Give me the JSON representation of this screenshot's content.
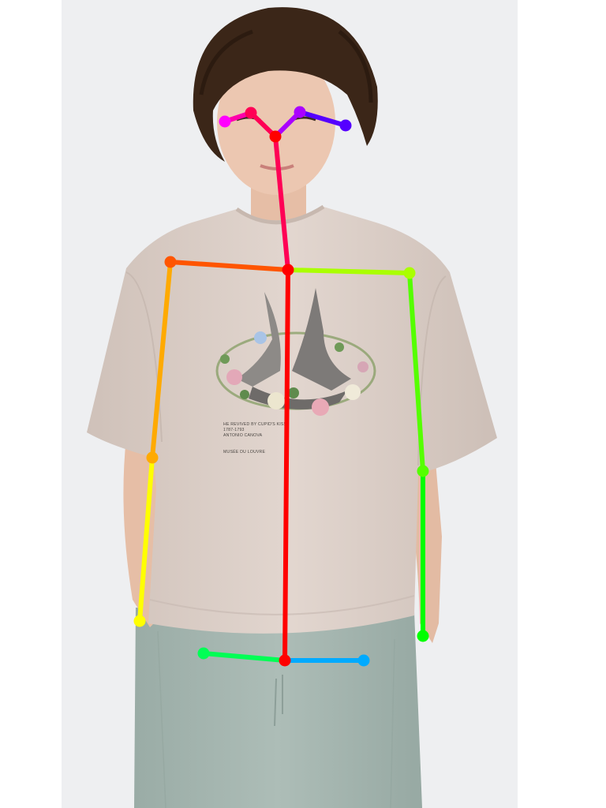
{
  "photo": {
    "background_color": "#eeeff1",
    "canvas_color": "#ffffff",
    "shirt_color": "#ddd0c9",
    "pants_color": "#a6b6b0",
    "hair_color": "#3b2618",
    "skin_color": "#e9c3ad"
  },
  "shirt_print": {
    "lines": [
      "HE REVIVED BY CUPID'S KISS",
      "1787-1793",
      "ANTONIO CANOVA",
      "MUSÉE DU LOUVRE"
    ]
  },
  "pose_overlay": {
    "keypoints": [
      {
        "name": "nose",
        "color": "#ff0000"
      },
      {
        "name": "neck",
        "color": "#ff0000"
      },
      {
        "name": "right-shoulder",
        "color": "#ff5500"
      },
      {
        "name": "right-elbow",
        "color": "#ffaa00"
      },
      {
        "name": "right-wrist",
        "color": "#ffff00"
      },
      {
        "name": "left-shoulder",
        "color": "#aaff00"
      },
      {
        "name": "left-elbow",
        "color": "#55ff00"
      },
      {
        "name": "left-wrist",
        "color": "#00ff00"
      },
      {
        "name": "mid-hip",
        "color": "#ff0000"
      },
      {
        "name": "right-hip",
        "color": "#00ff55"
      },
      {
        "name": "left-hip",
        "color": "#00aaff"
      },
      {
        "name": "right-eye",
        "color": "#ff0055"
      },
      {
        "name": "left-eye",
        "color": "#aa00ff"
      },
      {
        "name": "right-ear",
        "color": "#ff00ff"
      },
      {
        "name": "left-ear",
        "color": "#5500ff"
      }
    ],
    "limbs": [
      {
        "from": "nose",
        "to": "neck",
        "color": "#ff0055"
      },
      {
        "from": "neck",
        "to": "right-shoulder",
        "color": "#ff5500"
      },
      {
        "from": "right-shoulder",
        "to": "right-elbow",
        "color": "#ffaa00"
      },
      {
        "from": "right-elbow",
        "to": "right-wrist",
        "color": "#ffff00"
      },
      {
        "from": "neck",
        "to": "left-shoulder",
        "color": "#aaff00"
      },
      {
        "from": "left-shoulder",
        "to": "left-elbow",
        "color": "#55ff00"
      },
      {
        "from": "left-elbow",
        "to": "left-wrist",
        "color": "#00ff00"
      },
      {
        "from": "neck",
        "to": "mid-hip",
        "color": "#ff0000"
      },
      {
        "from": "mid-hip",
        "to": "right-hip",
        "color": "#00ff55"
      },
      {
        "from": "mid-hip",
        "to": "left-hip",
        "color": "#00aaff"
      },
      {
        "from": "nose",
        "to": "right-eye",
        "color": "#ff0055"
      },
      {
        "from": "right-eye",
        "to": "right-ear",
        "color": "#ff00aa"
      },
      {
        "from": "nose",
        "to": "left-eye",
        "color": "#aa00ff"
      },
      {
        "from": "left-eye",
        "to": "left-ear",
        "color": "#5500ff"
      }
    ]
  }
}
